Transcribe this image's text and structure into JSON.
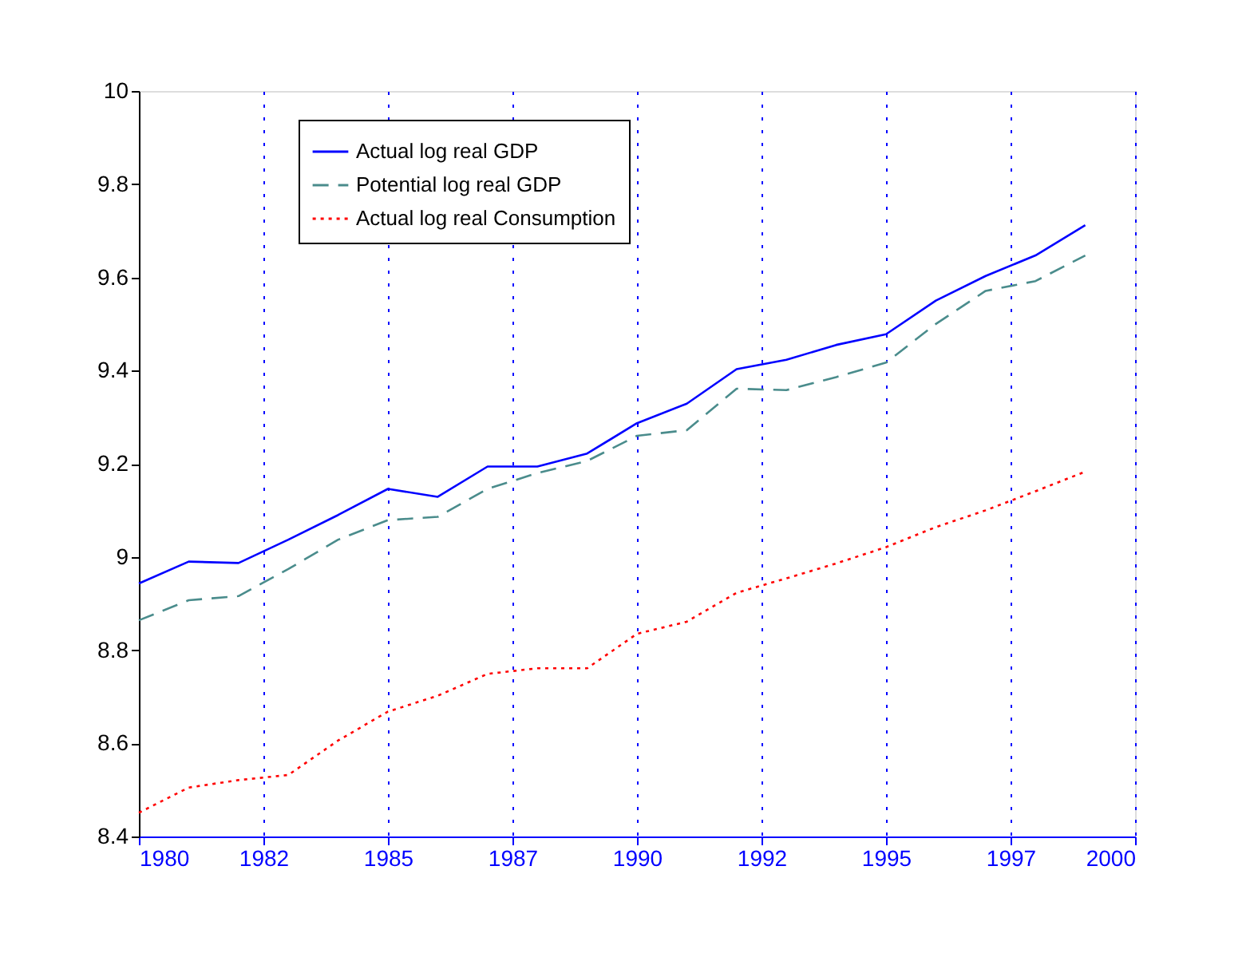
{
  "chart_data": {
    "type": "line",
    "x": [
      1980,
      1981,
      1982,
      1983,
      1984,
      1985,
      1986,
      1987,
      1988,
      1989,
      1990,
      1991,
      1992,
      1993,
      1994,
      1995,
      1996,
      1997,
      1998,
      1999
    ],
    "series": [
      {
        "name": "Actual log real GDP",
        "color": "#0000ff",
        "line_style": "solid",
        "values": [
          8.943,
          8.99,
          8.987,
          9.037,
          9.09,
          9.146,
          9.129,
          9.194,
          9.194,
          9.222,
          9.287,
          9.329,
          9.403,
          9.423,
          9.455,
          9.478,
          9.55,
          9.603,
          9.647,
          9.712
        ]
      },
      {
        "name": "Potential log real GDP",
        "color": "#4a8c8c",
        "line_style": "dashed",
        "values": [
          8.864,
          8.907,
          8.916,
          8.974,
          9.037,
          9.079,
          9.086,
          9.146,
          9.18,
          9.206,
          9.26,
          9.272,
          9.361,
          9.358,
          9.386,
          9.417,
          9.5,
          9.571,
          9.592,
          9.647
        ]
      },
      {
        "name": "Actual log real Consumption",
        "color": "#ff0000",
        "line_style": "dotted",
        "values": [
          8.451,
          8.505,
          8.521,
          8.532,
          8.606,
          8.668,
          8.702,
          8.749,
          8.761,
          8.761,
          8.835,
          8.861,
          8.923,
          8.954,
          8.986,
          9.021,
          9.064,
          9.1,
          9.141,
          9.183
        ]
      }
    ],
    "xlim": [
      1980,
      2000
    ],
    "xticks": [
      1980,
      {
        "value": 1982.5,
        "label": "1982"
      },
      1985,
      {
        "value": 1987.5,
        "label": "1987"
      },
      1990,
      {
        "value": 1992.5,
        "label": "1992"
      },
      1995,
      {
        "value": 1997.5,
        "label": "1997"
      },
      2000
    ],
    "ylim": [
      8.4,
      10
    ],
    "yticks": [
      8.4,
      8.6,
      8.8,
      9,
      9.2,
      9.4,
      9.6,
      9.8,
      10
    ],
    "grid": "x",
    "legend": "top left",
    "marker": "none"
  }
}
